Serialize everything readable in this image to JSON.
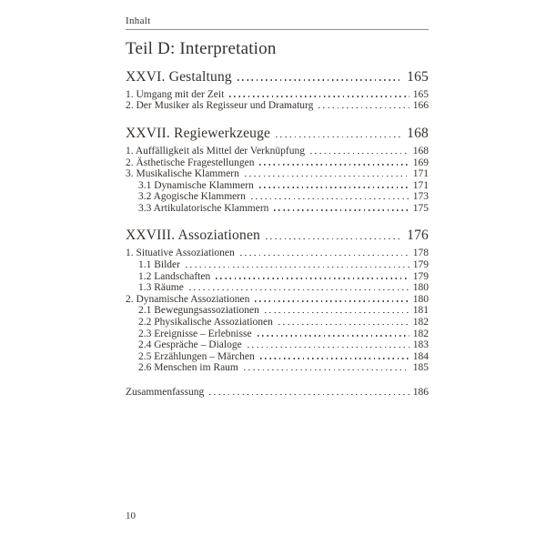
{
  "page": {
    "running_header": "Inhalt",
    "part_title": "Teil D: Interpretation",
    "folio": "10"
  },
  "toc": {
    "sections": [
      {
        "title": "XXVI. Gestaltung",
        "page": "165",
        "entries": [
          {
            "label": "1. Umgang mit der Zeit",
            "page": "165",
            "level": 1
          },
          {
            "label": "2. Der Musiker als Regisseur und Dramaturg",
            "page": "166",
            "level": 1
          }
        ]
      },
      {
        "title": "XXVII. Regiewerkzeuge",
        "page": "168",
        "entries": [
          {
            "label": "1. Auffälligkeit als Mittel der Verknüpfung",
            "page": "168",
            "level": 1
          },
          {
            "label": "2. Ästhetische Fragestellungen",
            "page": "169",
            "level": 1
          },
          {
            "label": "3. Musikalische Klammern",
            "page": "171",
            "level": 1
          },
          {
            "label": "3.1 Dynamische Klammern",
            "page": "171",
            "level": 2
          },
          {
            "label": "3.2 Agogische Klammern",
            "page": "173",
            "level": 2
          },
          {
            "label": "3.3 Artikulatorische Klammern",
            "page": "175",
            "level": 2
          }
        ]
      },
      {
        "title": "XXVIII. Assoziationen",
        "page": "176",
        "entries": [
          {
            "label": "1. Situative Assoziationen",
            "page": "178",
            "level": 1
          },
          {
            "label": "1.1 Bilder",
            "page": "179",
            "level": 2
          },
          {
            "label": "1.2 Landschaften",
            "page": "179",
            "level": 2
          },
          {
            "label": "1.3 Räume",
            "page": "180",
            "level": 2
          },
          {
            "label": "2. Dynamische Assoziationen",
            "page": "180",
            "level": 1
          },
          {
            "label": "2.1 Bewegungsassoziationen",
            "page": "181",
            "level": 2
          },
          {
            "label": "2.2 Physikalische Assoziationen",
            "page": "182",
            "level": 2
          },
          {
            "label": "2.3 Ereignisse – Erlebnisse",
            "page": "182",
            "level": 2
          },
          {
            "label": "2.4 Gespräche – Dialoge",
            "page": "183",
            "level": 2
          },
          {
            "label": "2.5 Erzählungen – Märchen",
            "page": "184",
            "level": 2
          },
          {
            "label": "2.6 Menschen im Raum",
            "page": "185",
            "level": 2
          }
        ]
      }
    ],
    "summary": {
      "label": "Zusammenfassung",
      "page": "186"
    }
  },
  "colors": {
    "background": "#ffffff",
    "text": "#35302c",
    "rule": "#8d8d8d",
    "dot_leader": "#4a443f"
  }
}
